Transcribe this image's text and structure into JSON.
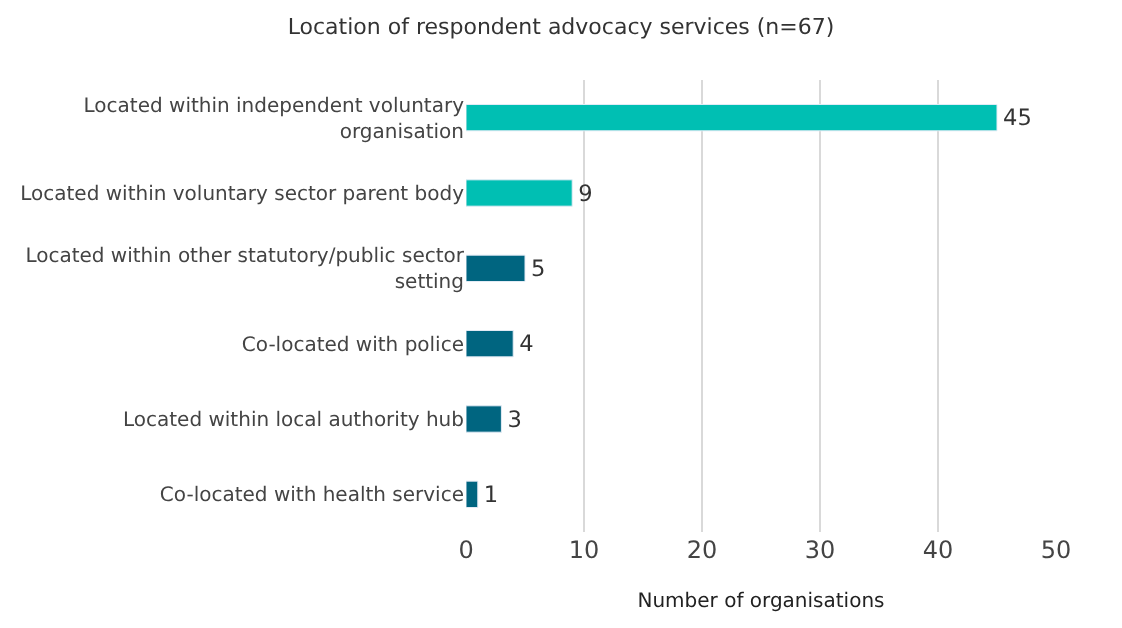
{
  "chart_data": {
    "type": "bar",
    "orientation": "horizontal",
    "title": "Location of respondent advocacy services (n=67)",
    "xlabel": "Number of organisations",
    "categories": [
      "Located within independent voluntary organisation",
      "Located within voluntary sector parent body",
      "Located within other statutory/public sector setting",
      "Co-located with police",
      "Located within local authority hub",
      "Co-located with health service"
    ],
    "values": [
      45,
      9,
      5,
      4,
      3,
      1
    ],
    "colors": [
      "#00bfb3",
      "#00bfb3",
      "#006580",
      "#006580",
      "#006580",
      "#006580"
    ],
    "xlim": [
      0,
      50
    ],
    "xticks": [
      0,
      10,
      20,
      30,
      40,
      50
    ],
    "grid": "x",
    "data_labels": true,
    "legend": false
  }
}
